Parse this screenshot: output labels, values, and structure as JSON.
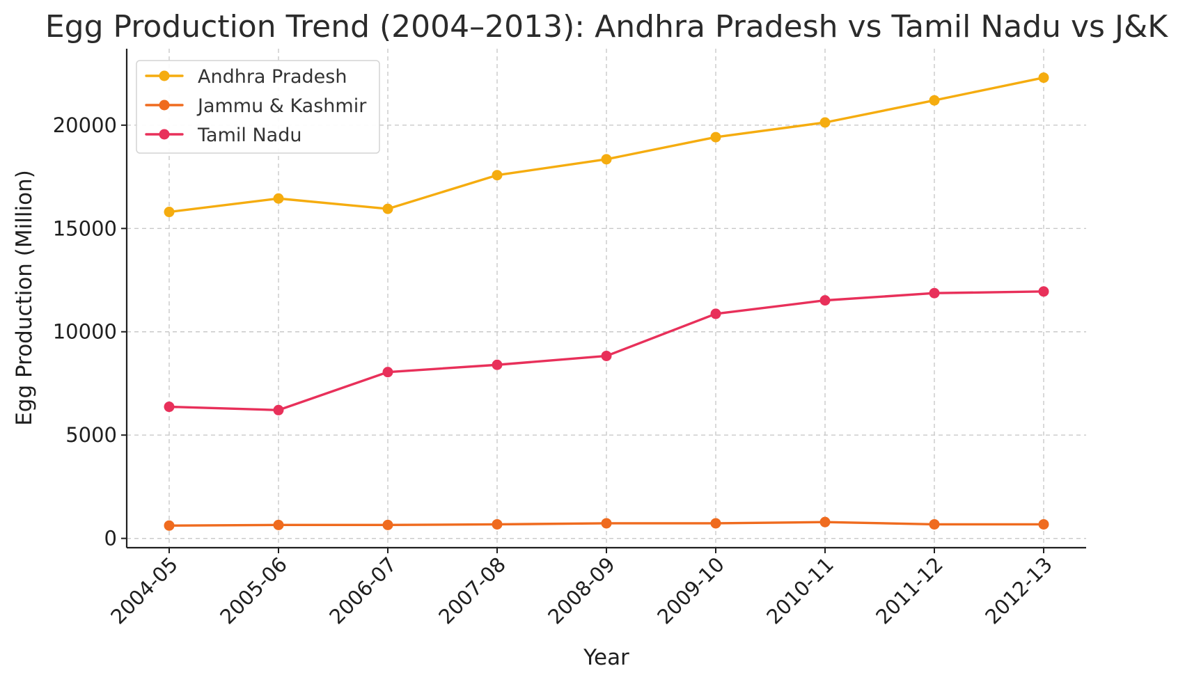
{
  "chart_data": {
    "type": "line",
    "title": "Egg Production Trend (2004–2013): Andhra Pradesh vs Tamil Nadu vs J&K",
    "xlabel": "Year",
    "ylabel": "Egg Production (Million)",
    "categories": [
      "2004-05",
      "2005-06",
      "2006-07",
      "2007-08",
      "2008-09",
      "2009-10",
      "2010-11",
      "2011-12",
      "2012-13"
    ],
    "ylim": [
      -450,
      23700
    ],
    "yticks": [
      0,
      5000,
      10000,
      15000,
      20000
    ],
    "ytick_labels": [
      "0",
      "5000",
      "10000",
      "15000",
      "20000"
    ],
    "grid": true,
    "legend_position": "top-left",
    "series": [
      {
        "name": "Andhra Pradesh",
        "color": "#f5ac0f",
        "values": [
          15800,
          16450,
          15950,
          17580,
          18350,
          19420,
          20130,
          21200,
          22300
        ]
      },
      {
        "name": "Jammu & Kashmir",
        "color": "#ef6b1f",
        "values": [
          620,
          650,
          650,
          680,
          730,
          730,
          790,
          680,
          680
        ]
      },
      {
        "name": "Tamil Nadu",
        "color": "#e8305a",
        "values": [
          6370,
          6210,
          8050,
          8400,
          8830,
          10870,
          11520,
          11870,
          11950
        ]
      }
    ]
  }
}
